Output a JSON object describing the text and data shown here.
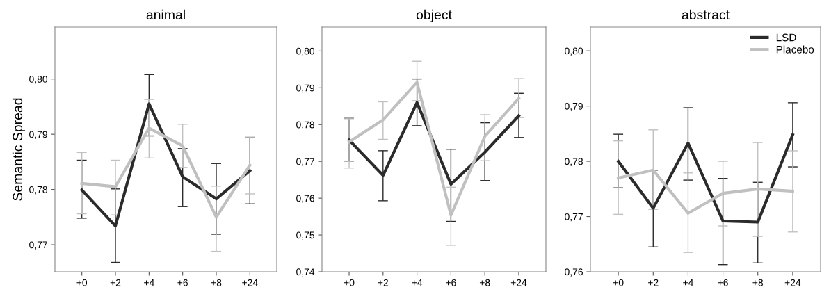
{
  "chart_data": [
    {
      "type": "line",
      "title": "animal",
      "ylabel": "Semantic Spread",
      "categories": [
        "+0",
        "+2",
        "+4",
        "+6",
        "+8",
        "+24"
      ],
      "ylim": [
        0.7651,
        0.8094
      ],
      "yticks": [
        {
          "value": 0.77,
          "label": "0,77"
        },
        {
          "value": 0.78,
          "label": "0,78"
        },
        {
          "value": 0.79,
          "label": "0,79"
        },
        {
          "value": 0.8,
          "label": "0,80"
        }
      ],
      "grid": false,
      "legend": false,
      "marker": "none",
      "line_style": "solid",
      "series": [
        {
          "color": "#2b2b2b",
          "values": [
            0.7799,
            0.7734,
            0.7955,
            0.7823,
            0.7783,
            0.7834
          ],
          "errors": [
            [
              0.7748,
              0.7853
            ],
            [
              0.7668,
              0.7801
            ],
            [
              0.7897,
              0.8008
            ],
            [
              0.7769,
              0.7874
            ],
            [
              0.7719,
              0.7847
            ],
            [
              0.7774,
              0.7894
            ]
          ]
        },
        {
          "color": "#c0c0c0",
          "values": [
            0.7811,
            0.7805,
            0.7911,
            0.7879,
            0.775,
            0.7844
          ],
          "errors": [
            [
              0.7756,
              0.7867
            ],
            [
              0.7754,
              0.7853
            ],
            [
              0.7857,
              0.7963
            ],
            [
              0.784,
              0.7918
            ],
            [
              0.7688,
              0.7806
            ],
            [
              0.7792,
              0.7895
            ]
          ]
        }
      ]
    },
    {
      "type": "line",
      "title": "object",
      "categories": [
        "+0",
        "+2",
        "+4",
        "+6",
        "+8",
        "+24"
      ],
      "ylim": [
        0.74,
        0.8065
      ],
      "yticks": [
        {
          "value": 0.74,
          "label": "0,74"
        },
        {
          "value": 0.75,
          "label": "0,75"
        },
        {
          "value": 0.76,
          "label": "0,76"
        },
        {
          "value": 0.77,
          "label": "0,77"
        },
        {
          "value": 0.78,
          "label": "0,78"
        },
        {
          "value": 0.79,
          "label": "0,79"
        },
        {
          "value": 0.8,
          "label": "0,80"
        }
      ],
      "grid": false,
      "legend": false,
      "marker": "none",
      "line_style": "solid",
      "series": [
        {
          "color": "#2b2b2b",
          "values": [
            0.7758,
            0.7662,
            0.786,
            0.7638,
            0.7725,
            0.7824
          ],
          "errors": [
            [
              0.7701,
              0.7817
            ],
            [
              0.7593,
              0.7729
            ],
            [
              0.7797,
              0.7924
            ],
            [
              0.7537,
              0.7733
            ],
            [
              0.7648,
              0.7805
            ],
            [
              0.7765,
              0.7885
            ]
          ]
        },
        {
          "color": "#c0c0c0",
          "values": [
            0.7753,
            0.7813,
            0.7915,
            0.7554,
            0.7768,
            0.7871
          ],
          "errors": [
            [
              0.7682,
              0.7816
            ],
            [
              0.776,
              0.7862
            ],
            [
              0.7865,
              0.7972
            ],
            [
              0.7472,
              0.763
            ],
            [
              0.7702,
              0.7827
            ],
            [
              0.7819,
              0.7925
            ]
          ]
        }
      ]
    },
    {
      "type": "line",
      "title": "abstract",
      "categories": [
        "+0",
        "+2",
        "+4",
        "+6",
        "+8",
        "+24"
      ],
      "ylim": [
        0.76,
        0.8043
      ],
      "yticks": [
        {
          "value": 0.76,
          "label": "0,76"
        },
        {
          "value": 0.77,
          "label": "0,77"
        },
        {
          "value": 0.78,
          "label": "0,78"
        },
        {
          "value": 0.79,
          "label": "0,79"
        },
        {
          "value": 0.8,
          "label": "0,80"
        }
      ],
      "grid": false,
      "legend": "top right",
      "marker": "none",
      "line_style": "solid",
      "series": [
        {
          "name": "LSD",
          "color": "#2b2b2b",
          "values": [
            0.78,
            0.7715,
            0.7833,
            0.7692,
            0.769,
            0.7848
          ],
          "errors": [
            [
              0.7752,
              0.7849
            ],
            [
              0.7645,
              0.7784
            ],
            [
              0.7766,
              0.7897
            ],
            [
              0.7613,
              0.7769
            ],
            [
              0.7616,
              0.7762
            ],
            [
              0.779,
              0.7906
            ]
          ]
        },
        {
          "name": "Placebo",
          "color": "#c0c0c0",
          "values": [
            0.777,
            0.7784,
            0.7706,
            0.7742,
            0.775,
            0.7746
          ],
          "errors": [
            [
              0.7704,
              0.7837
            ],
            [
              0.7713,
              0.7857
            ],
            [
              0.7635,
              0.7779
            ],
            [
              0.7683,
              0.78
            ],
            [
              0.7664,
              0.7834
            ],
            [
              0.7672,
              0.7819
            ]
          ]
        }
      ]
    }
  ]
}
